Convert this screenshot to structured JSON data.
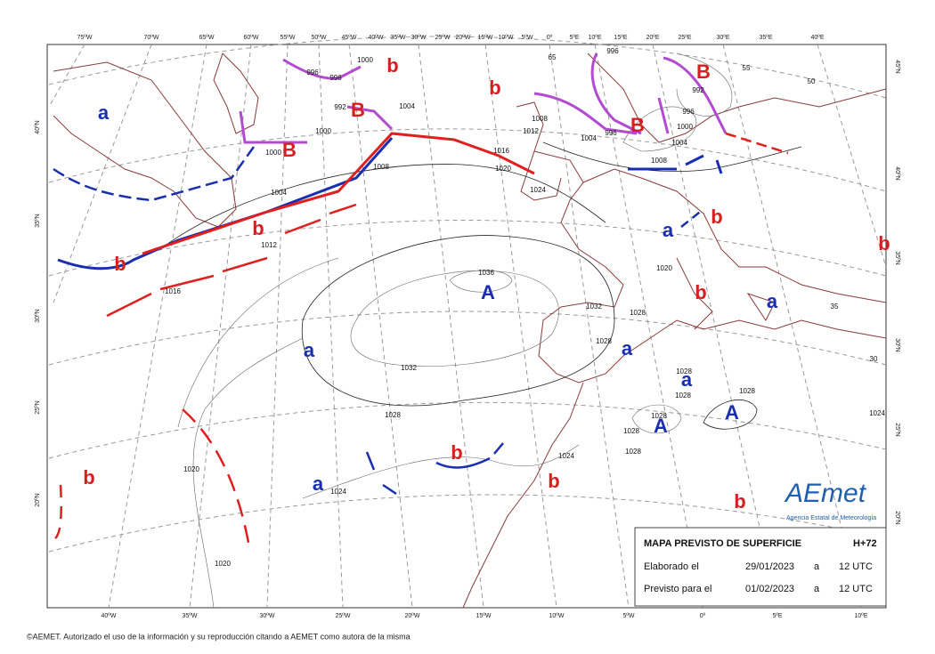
{
  "top_longitudes": [
    "75ºW",
    "70ºW",
    "65ºW",
    "60ºW",
    "55ºW",
    "50ºW",
    "45ºW",
    "40ºW",
    "35ºW",
    "30ºW",
    "25ºW",
    "20ºW",
    "15ºW",
    "10ºW",
    "5ºW",
    "0º",
    "5ºE",
    "10ºE",
    "15ºE",
    "20ºE",
    "25ºE",
    "30ºE",
    "35ºE",
    "40ºE"
  ],
  "bottom_longitudes": [
    "40ºW",
    "35ºW",
    "30ºW",
    "25ºW",
    "20ºW",
    "15ºW",
    "10ºW",
    "5ºW",
    "0º",
    "5ºE",
    "10ºE"
  ],
  "left_latitudes": [
    "40ºN",
    "35ºN",
    "30ºN",
    "25ºN",
    "20ºN"
  ],
  "right_latitudes": [
    "45ºN",
    "40ºN",
    "35ºN",
    "30ºN",
    "25ºN",
    "20ºN"
  ],
  "pressure_centers": [
    {
      "label": "a",
      "color": "#1a2fb0"
    },
    {
      "label": "B",
      "color": "#d42020"
    },
    {
      "label": "B",
      "color": "#d42020"
    },
    {
      "label": "b",
      "color": "#d42020"
    },
    {
      "label": "b",
      "color": "#d42020"
    },
    {
      "label": "B",
      "color": "#d42020"
    },
    {
      "label": "B",
      "color": "#d42020"
    },
    {
      "label": "b",
      "color": "#d42020"
    },
    {
      "label": "b",
      "color": "#d42020"
    },
    {
      "label": "a",
      "color": "#1a2fb0"
    },
    {
      "label": "b",
      "color": "#d42020"
    },
    {
      "label": "b",
      "color": "#d42020"
    },
    {
      "label": "A",
      "color": "#1a2fb0"
    },
    {
      "label": "b",
      "color": "#d42020"
    },
    {
      "label": "a",
      "color": "#1a2fb0"
    },
    {
      "label": "a",
      "color": "#1a2fb0"
    },
    {
      "label": "a",
      "color": "#1a2fb0"
    },
    {
      "label": "a",
      "color": "#1a2fb0"
    },
    {
      "label": "A",
      "color": "#1a2fb0"
    },
    {
      "label": "A",
      "color": "#1a2fb0"
    },
    {
      "label": "b",
      "color": "#d42020"
    },
    {
      "label": "b",
      "color": "#d42020"
    },
    {
      "label": "a",
      "color": "#1a2fb0"
    },
    {
      "label": "b",
      "color": "#d42020"
    },
    {
      "label": "b",
      "color": "#d42020"
    }
  ],
  "isobar_labels": [
    "1000",
    "996",
    "996",
    "996",
    "1004",
    "992",
    "1000",
    "1000",
    "1004",
    "1008",
    "1008",
    "1012",
    "1016",
    "1020",
    "1024",
    "1012",
    "1016",
    "1036",
    "1032",
    "1028",
    "1028",
    "1032",
    "1028",
    "1020",
    "1028",
    "1028",
    "1028",
    "1028",
    "1028",
    "1028",
    "1024",
    "1024",
    "1020",
    "1020",
    "1024",
    "1004",
    "996",
    "992",
    "996",
    "1000",
    "1004",
    "1008",
    "55",
    "50",
    "35",
    "30",
    "65"
  ],
  "info_box": {
    "title": "MAPA PREVISTO DE SUPERFICIE",
    "lead_time": "H+72",
    "issued_label": "Elaborado el",
    "issued_date": "29/01/2023",
    "issued_at": "a",
    "issued_time": "12 UTC",
    "valid_label": "Previsto para el",
    "valid_date": "01/02/2023",
    "valid_at": "a",
    "valid_time": "12 UTC"
  },
  "logo": {
    "name": "AEmet",
    "subtitle": "Agencia Estatal de Meteorología"
  },
  "copyright": "©AEMET. Autorizado el uso de la información y su reproducción citando a AEMET como autora de la misma"
}
